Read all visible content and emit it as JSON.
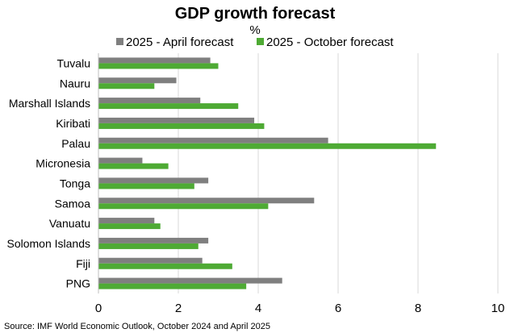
{
  "chart_data": {
    "type": "bar",
    "orientation": "horizontal",
    "title": "GDP growth forecast",
    "subtitle": "%",
    "categories": [
      "Tuvalu",
      "Nauru",
      "Marshall Islands",
      "Kiribati",
      "Palau",
      "Micronesia",
      "Tonga",
      "Samoa",
      "Vanuatu",
      "Solomon Islands",
      "Fiji",
      "PNG"
    ],
    "series": [
      {
        "name": "2025 - April forecast",
        "color": "#7f7f7f",
        "values": [
          2.8,
          1.95,
          2.55,
          3.9,
          5.75,
          1.1,
          2.75,
          5.4,
          1.4,
          2.75,
          2.6,
          4.6
        ]
      },
      {
        "name": "2025 - October forecast",
        "color": "#4eaa34",
        "values": [
          3.0,
          1.4,
          3.5,
          4.15,
          8.45,
          1.75,
          2.4,
          4.25,
          1.55,
          2.5,
          3.35,
          3.7
        ]
      }
    ],
    "xlim": [
      0,
      10
    ],
    "xticks": [
      "0",
      "2",
      "4",
      "6",
      "8",
      "10"
    ],
    "grid": true,
    "legend": "top",
    "xlabel": "",
    "ylabel": "",
    "source": "Source: IMF World Economic Outlook, October 2024 and April 2025"
  }
}
